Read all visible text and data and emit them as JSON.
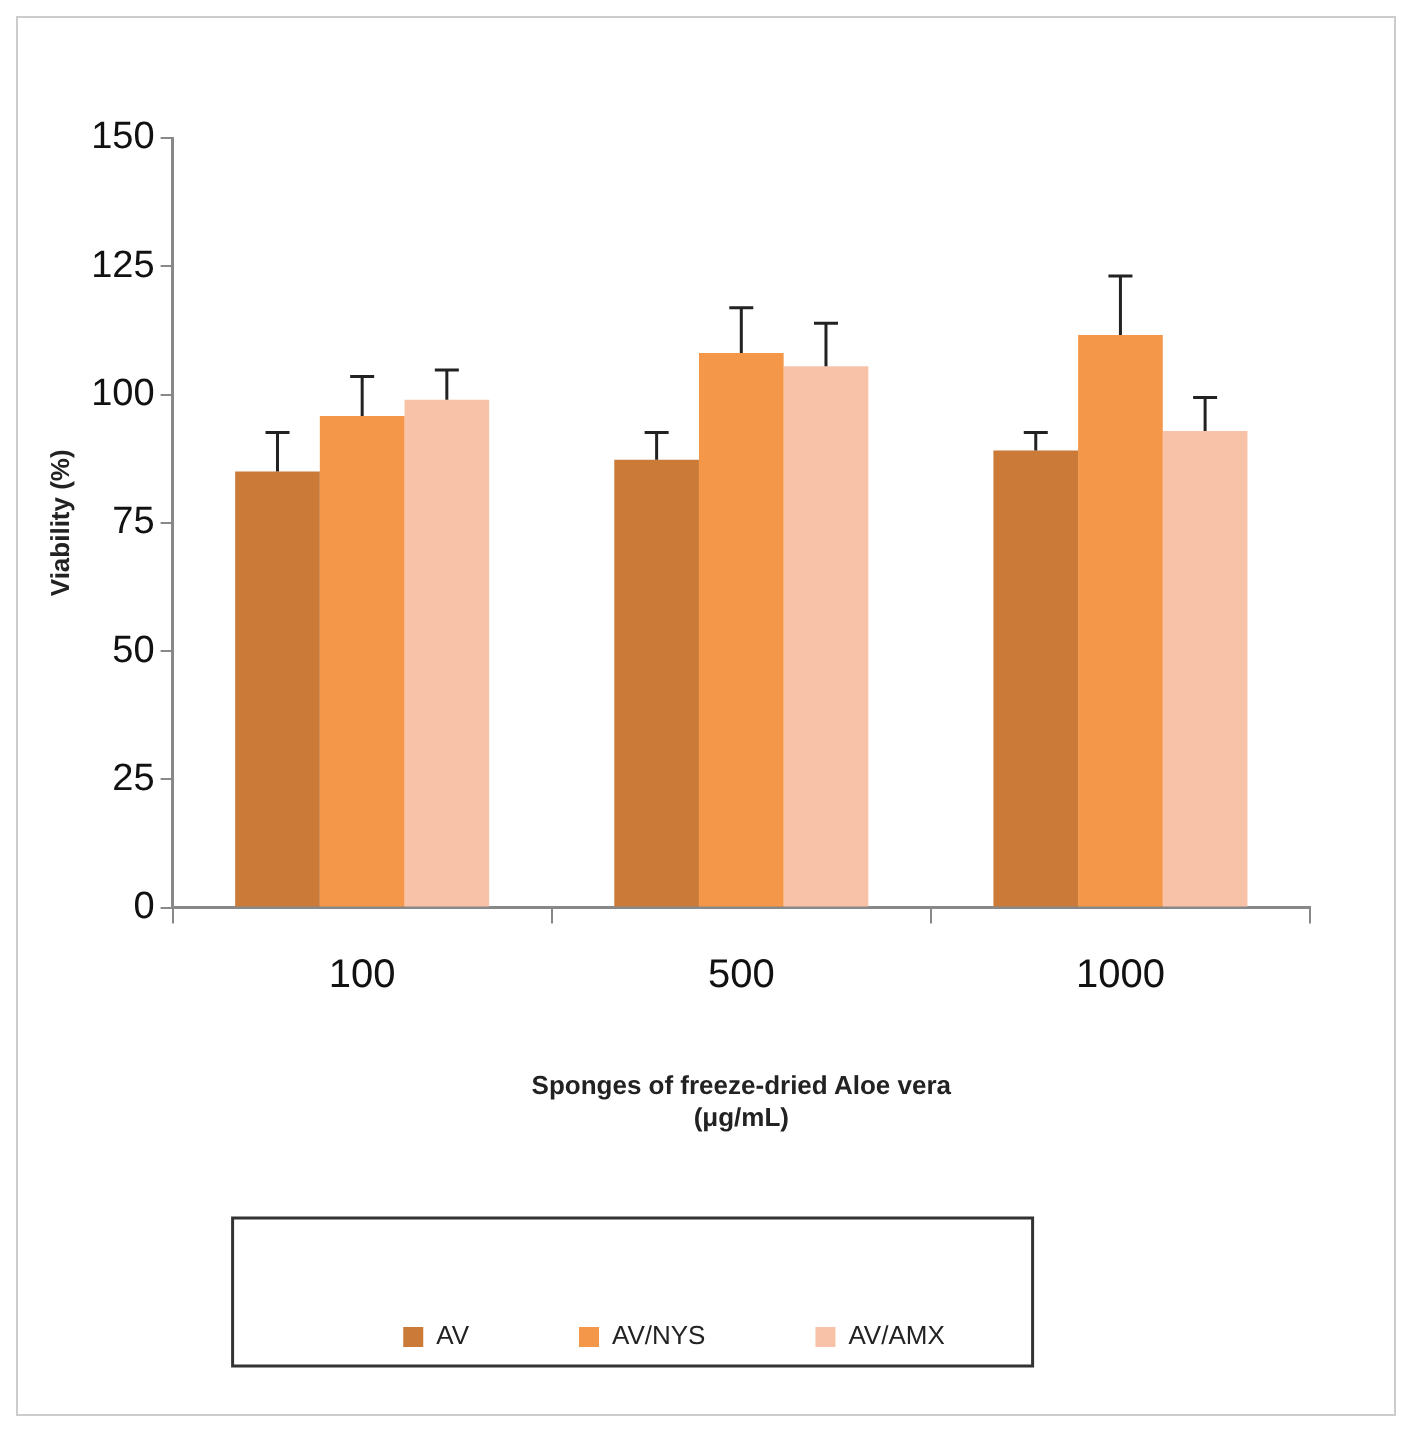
{
  "chart_data": {
    "type": "bar",
    "xlabel": "Sponges of freeze-dried Aloe vera\n(μg/mL)",
    "ylabel": "Viability (%)",
    "categories": [
      "100",
      "500",
      "1000"
    ],
    "series": [
      {
        "name": "AV",
        "color": "#cb7a38",
        "values": [
          85,
          87.3,
          89.1
        ],
        "errors": [
          [
            85,
            92.6
          ],
          [
            87.3,
            92.6
          ],
          [
            89.1,
            92.6
          ]
        ]
      },
      {
        "name": "AV/NYS",
        "color": "#f49748",
        "values": [
          95.8,
          108.1,
          111.6
        ],
        "errors": [
          [
            95.8,
            103.5
          ],
          [
            108.1,
            116.9
          ],
          [
            111.6,
            123.1
          ]
        ]
      },
      {
        "name": "AV/AMX",
        "color": "#f8c2a8",
        "values": [
          99,
          105.5,
          92.9
        ],
        "errors": [
          [
            99,
            104.8
          ],
          [
            105.5,
            113.9
          ],
          [
            92.9,
            99.4
          ]
        ]
      }
    ],
    "ylim": [
      0,
      150
    ],
    "yticks": [
      0,
      25,
      50,
      75,
      100,
      125,
      150
    ],
    "grid": false,
    "legend": "bottom"
  }
}
